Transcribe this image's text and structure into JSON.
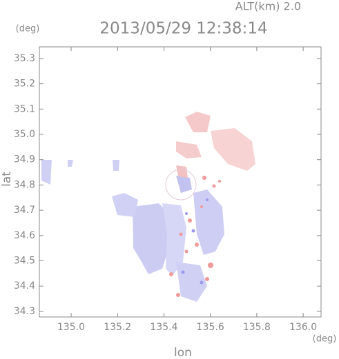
{
  "chart_data": {
    "type": "map",
    "title": "2013/05/29 12:38:14",
    "subtitle": "ALT(km) 2.0",
    "x_label": "lon",
    "y_label": "lat",
    "x_unit": "(deg)",
    "y_unit": "(deg)",
    "xlim": [
      134.863,
      136.077
    ],
    "ylim": [
      34.278,
      35.346
    ],
    "xticks": [
      {
        "value": 135,
        "label": "135.0"
      },
      135.2,
      135.4,
      135.6,
      135.8,
      {
        "value": 136,
        "label": "136.0"
      }
    ],
    "yticks": [
      34.3,
      34.4,
      34.5,
      34.6,
      34.7,
      34.8,
      34.9,
      {
        "value": 35,
        "label": "35.0"
      },
      35.1,
      35.2,
      35.3
    ]
  }
}
